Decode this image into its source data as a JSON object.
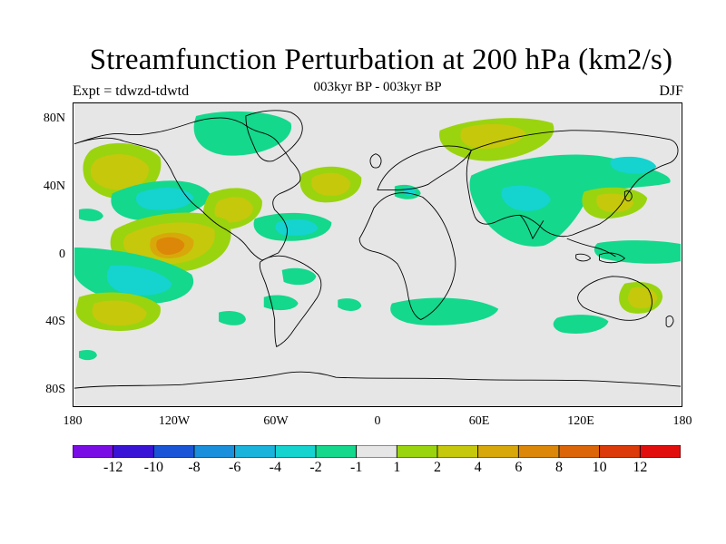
{
  "title": "Streamfunction Perturbation at 200 hPa (km2/s)",
  "left_label": "Expt = tdwzd-tdwtd",
  "center_label": "003kyr BP - 003kyr BP",
  "right_label": "DJF",
  "map": {
    "projection": "cylindrical equidistant",
    "lon_range": [
      -180,
      180
    ],
    "lat_range": [
      -90,
      90
    ],
    "background_color": "#e6e6e6",
    "coastline_color": "#000000"
  },
  "axes": {
    "y_ticks": [
      "80N",
      "40N",
      "0",
      "40S",
      "80S"
    ],
    "x_ticks": [
      "180",
      "120W",
      "60W",
      "0",
      "60E",
      "120E",
      "180"
    ]
  },
  "colorbar": {
    "colors": [
      "#7a0de6",
      "#3a14d6",
      "#1a55d8",
      "#1a8fdb",
      "#1ab3db",
      "#15d3cf",
      "#14d88c",
      "#e6e6e6",
      "#9ad40f",
      "#c6c80c",
      "#d8a80a",
      "#dc8708",
      "#dc6508",
      "#dc3a08",
      "#e20e0e"
    ],
    "labels": [
      "-12",
      "-10",
      "-8",
      "-6",
      "-4",
      "-2",
      "-1",
      "1",
      "2",
      "4",
      "6",
      "8",
      "10",
      "12"
    ]
  }
}
